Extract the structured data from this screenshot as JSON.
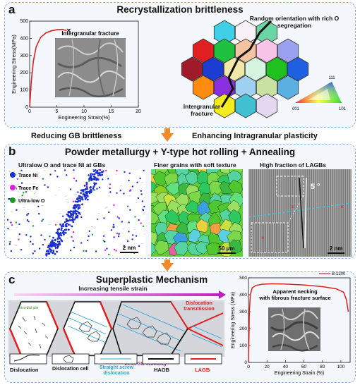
{
  "panel_a": {
    "label": "a",
    "title": "Recrystallization brittleness",
    "chart_inset_label": "Intergranular fracture",
    "annotation_top": "Random orientation with rich O segregation",
    "annotation_bottom": "Intergranular fracture",
    "ipf_labels": {
      "top": "111",
      "left": "001",
      "right": "101"
    },
    "chart_data": {
      "type": "line",
      "xlabel": "Engineering Strain(%)",
      "ylabel": "Engineering Stress(MPa)",
      "xlim": [
        0,
        20
      ],
      "ylim": [
        0,
        500
      ],
      "xticks": [
        0,
        5,
        10,
        15,
        20
      ],
      "yticks": [
        0,
        100,
        200,
        300,
        400,
        500
      ],
      "series": [
        {
          "x": [
            0,
            0.3,
            0.7,
            1.2,
            2,
            3,
            4,
            5,
            6,
            6.8
          ],
          "y": [
            0,
            150,
            270,
            350,
            405,
            432,
            444,
            450,
            452,
            445
          ],
          "color": "#e02020"
        }
      ],
      "fracture_marker": {
        "x": 7.2,
        "y": 445
      }
    }
  },
  "bridge_ab": {
    "left": "Reducing GB brittleness",
    "right": "Enhancing Intragranular plasticity"
  },
  "panel_b": {
    "label": "b",
    "title": "Powder metallurgy + Y-type hot rolling + Annealing",
    "col1_title": "Ultralow O and trace Ni  at GBs",
    "col2_title": "Finer grains with soft texture",
    "col3_title": "High fraction of LAGBs",
    "legend": [
      {
        "name": "Trace Ni",
        "color": "#1a2fd0"
      },
      {
        "name": "Trace Fe",
        "color": "#e020e0"
      },
      {
        "name": "Ultra-low O",
        "color": "#1e9a1e"
      }
    ],
    "scale1": "2 nm",
    "scale2": "50 μm",
    "scale3": "2 nm",
    "angle": "5 °"
  },
  "panel_c": {
    "label": "c",
    "title": "Superplastic Mechanism",
    "strain_arrow": "Increasing tensile strain",
    "hex_label": "Intra-disl pile",
    "dislocation_transmission": "Dislocation transmission",
    "less_gb": "Less GB cracking",
    "legend": [
      {
        "name": "Dislocation"
      },
      {
        "name": "Dislocation cell"
      },
      {
        "name": "Straight screw dislocation",
        "color": "#2aa6d9"
      },
      {
        "name": "HAGB",
        "color": "#000000"
      },
      {
        "name": "LAGB",
        "color": "#e02020"
      }
    ],
    "chart_inset": "Apparent necking with fibrous fracture surface",
    "chart_data": {
      "type": "line",
      "xlabel": "Engineering Strain (%)",
      "ylabel": "Engineering Stress (MPa)",
      "xlim": [
        0,
        110
      ],
      "ylim": [
        0,
        500
      ],
      "xticks": [
        0,
        20,
        40,
        60,
        80,
        100
      ],
      "yticks": [
        0,
        100,
        200,
        300,
        400,
        500
      ],
      "legend": "top-right",
      "series": [
        {
          "name": "B-1200",
          "color": "#e02020",
          "x": [
            0,
            0.5,
            1,
            2,
            4,
            8,
            15,
            25,
            40,
            60,
            80,
            95,
            103,
            106,
            108
          ],
          "y": [
            0,
            150,
            300,
            400,
            440,
            455,
            462,
            465,
            463,
            458,
            448,
            435,
            415,
            370,
            300
          ]
        }
      ]
    }
  }
}
